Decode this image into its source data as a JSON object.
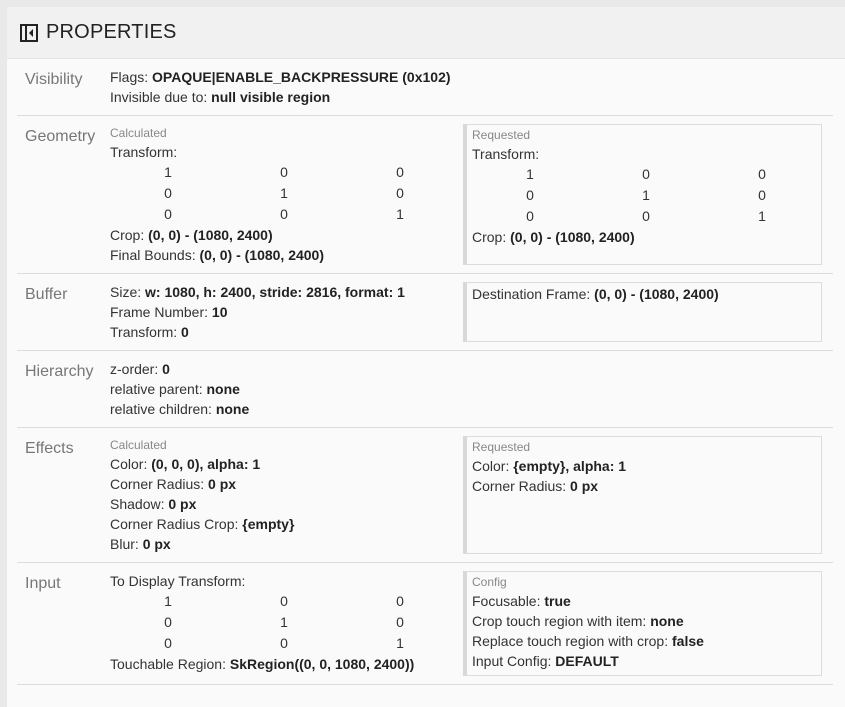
{
  "header": {
    "title": "PROPERTIES",
    "icon": "sidebar-collapse-icon"
  },
  "sections": [
    {
      "label": "Visibility",
      "left": {
        "items": [
          {
            "k": "Flags: ",
            "v": "OPAQUE|ENABLE_BACKPRESSURE (0x102)"
          },
          {
            "k": "Invisible due to: ",
            "v": "null visible region"
          }
        ]
      }
    },
    {
      "label": "Geometry",
      "left": {
        "title": "Calculated",
        "items": [
          {
            "k": "Transform:"
          },
          {
            "matrix": [
              [
                "1",
                "0",
                "0"
              ],
              [
                "0",
                "1",
                "0"
              ],
              [
                "0",
                "0",
                "1"
              ]
            ]
          },
          {
            "k": "Crop: ",
            "v": "(0, 0) - (1080, 2400)"
          },
          {
            "k": "Final Bounds: ",
            "v": "(0, 0) - (1080, 2400)"
          }
        ]
      },
      "right": {
        "title": "Requested",
        "items": [
          {
            "k": "Transform:"
          },
          {
            "matrix": [
              [
                "1",
                "0",
                "0"
              ],
              [
                "0",
                "1",
                "0"
              ],
              [
                "0",
                "0",
                "1"
              ]
            ]
          },
          {
            "k": "Crop: ",
            "v": "(0, 0) - (1080, 2400)"
          }
        ]
      }
    },
    {
      "label": "Buffer",
      "left": {
        "items": [
          {
            "k": "Size: ",
            "v": "w: 1080, h: 2400, stride: 2816, format: 1"
          },
          {
            "k": "Frame Number: ",
            "v": "10"
          },
          {
            "k": "Transform: ",
            "v": "0"
          }
        ]
      },
      "right": {
        "items": [
          {
            "k": "Destination Frame: ",
            "v": "(0, 0) - (1080, 2400)"
          }
        ]
      }
    },
    {
      "label": "Hierarchy",
      "left": {
        "items": [
          {
            "k": "z-order: ",
            "v": "0"
          },
          {
            "k": "relative parent: ",
            "v": "none"
          },
          {
            "k": "relative children: ",
            "v": "none"
          }
        ]
      }
    },
    {
      "label": "Effects",
      "left": {
        "title": "Calculated",
        "items": [
          {
            "k": "Color: ",
            "v": "(0, 0, 0), alpha: 1"
          },
          {
            "k": "Corner Radius: ",
            "v": "0 px"
          },
          {
            "k": "Shadow: ",
            "v": "0 px"
          },
          {
            "k": "Corner Radius Crop: ",
            "v": "{empty}"
          },
          {
            "k": "Blur: ",
            "v": "0 px"
          }
        ]
      },
      "right": {
        "title": "Requested",
        "items": [
          {
            "k": "Color: ",
            "v": "{empty}, alpha: 1"
          },
          {
            "k": "Corner Radius: ",
            "v": "0 px"
          }
        ]
      }
    },
    {
      "label": "Input",
      "left": {
        "items": [
          {
            "k": "To Display Transform:"
          },
          {
            "matrix": [
              [
                "1",
                "0",
                "0"
              ],
              [
                "0",
                "1",
                "0"
              ],
              [
                "0",
                "0",
                "1"
              ]
            ]
          },
          {
            "k": "Touchable Region: ",
            "v": "SkRegion((0, 0, 1080, 2400))"
          }
        ]
      },
      "right": {
        "title": "Config",
        "items": [
          {
            "k": "Focusable: ",
            "v": "true"
          },
          {
            "k": "Crop touch region with item: ",
            "v": "none"
          },
          {
            "k": "Replace touch region with crop: ",
            "v": "false"
          },
          {
            "k": "Input Config: ",
            "v": "DEFAULT"
          }
        ]
      }
    }
  ]
}
